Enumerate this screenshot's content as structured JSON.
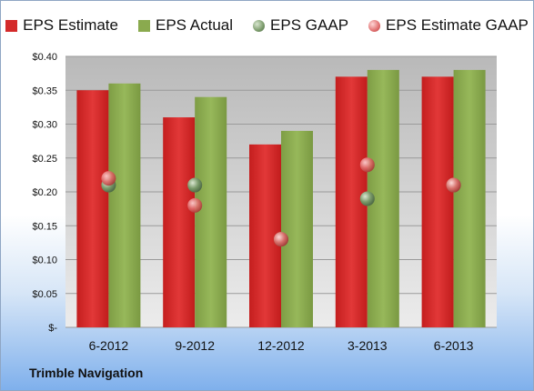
{
  "chart_data": {
    "type": "bar",
    "categories": [
      "6-2012",
      "9-2012",
      "12-2012",
      "3-2013",
      "6-2013"
    ],
    "series": [
      {
        "name": "EPS Estimate",
        "kind": "bar",
        "values": [
          0.35,
          0.31,
          0.27,
          0.37,
          0.37
        ],
        "color": "#d42a2a"
      },
      {
        "name": "EPS Actual",
        "kind": "bar",
        "values": [
          0.36,
          0.34,
          0.29,
          0.38,
          0.38
        ],
        "color": "#8aaa4e"
      },
      {
        "name": "EPS GAAP",
        "kind": "point",
        "values": [
          0.21,
          0.21,
          0.13,
          0.19,
          0.21
        ],
        "color": "#7a9a6a"
      },
      {
        "name": "EPS Estimate GAAP",
        "kind": "point",
        "values": [
          0.22,
          0.18,
          0.13,
          0.24,
          0.21
        ],
        "color": "#e07070"
      }
    ],
    "ylim": [
      0,
      0.4
    ],
    "yticks": [
      0,
      0.05,
      0.1,
      0.15,
      0.2,
      0.25,
      0.3,
      0.35,
      0.4
    ],
    "ytick_labels": [
      "$-",
      "$0.05",
      "$0.10",
      "$0.15",
      "$0.20",
      "$0.25",
      "$0.30",
      "$0.35",
      "$0.40"
    ],
    "grid": true,
    "legend_position": "top",
    "footer": "Trimble Navigation"
  }
}
